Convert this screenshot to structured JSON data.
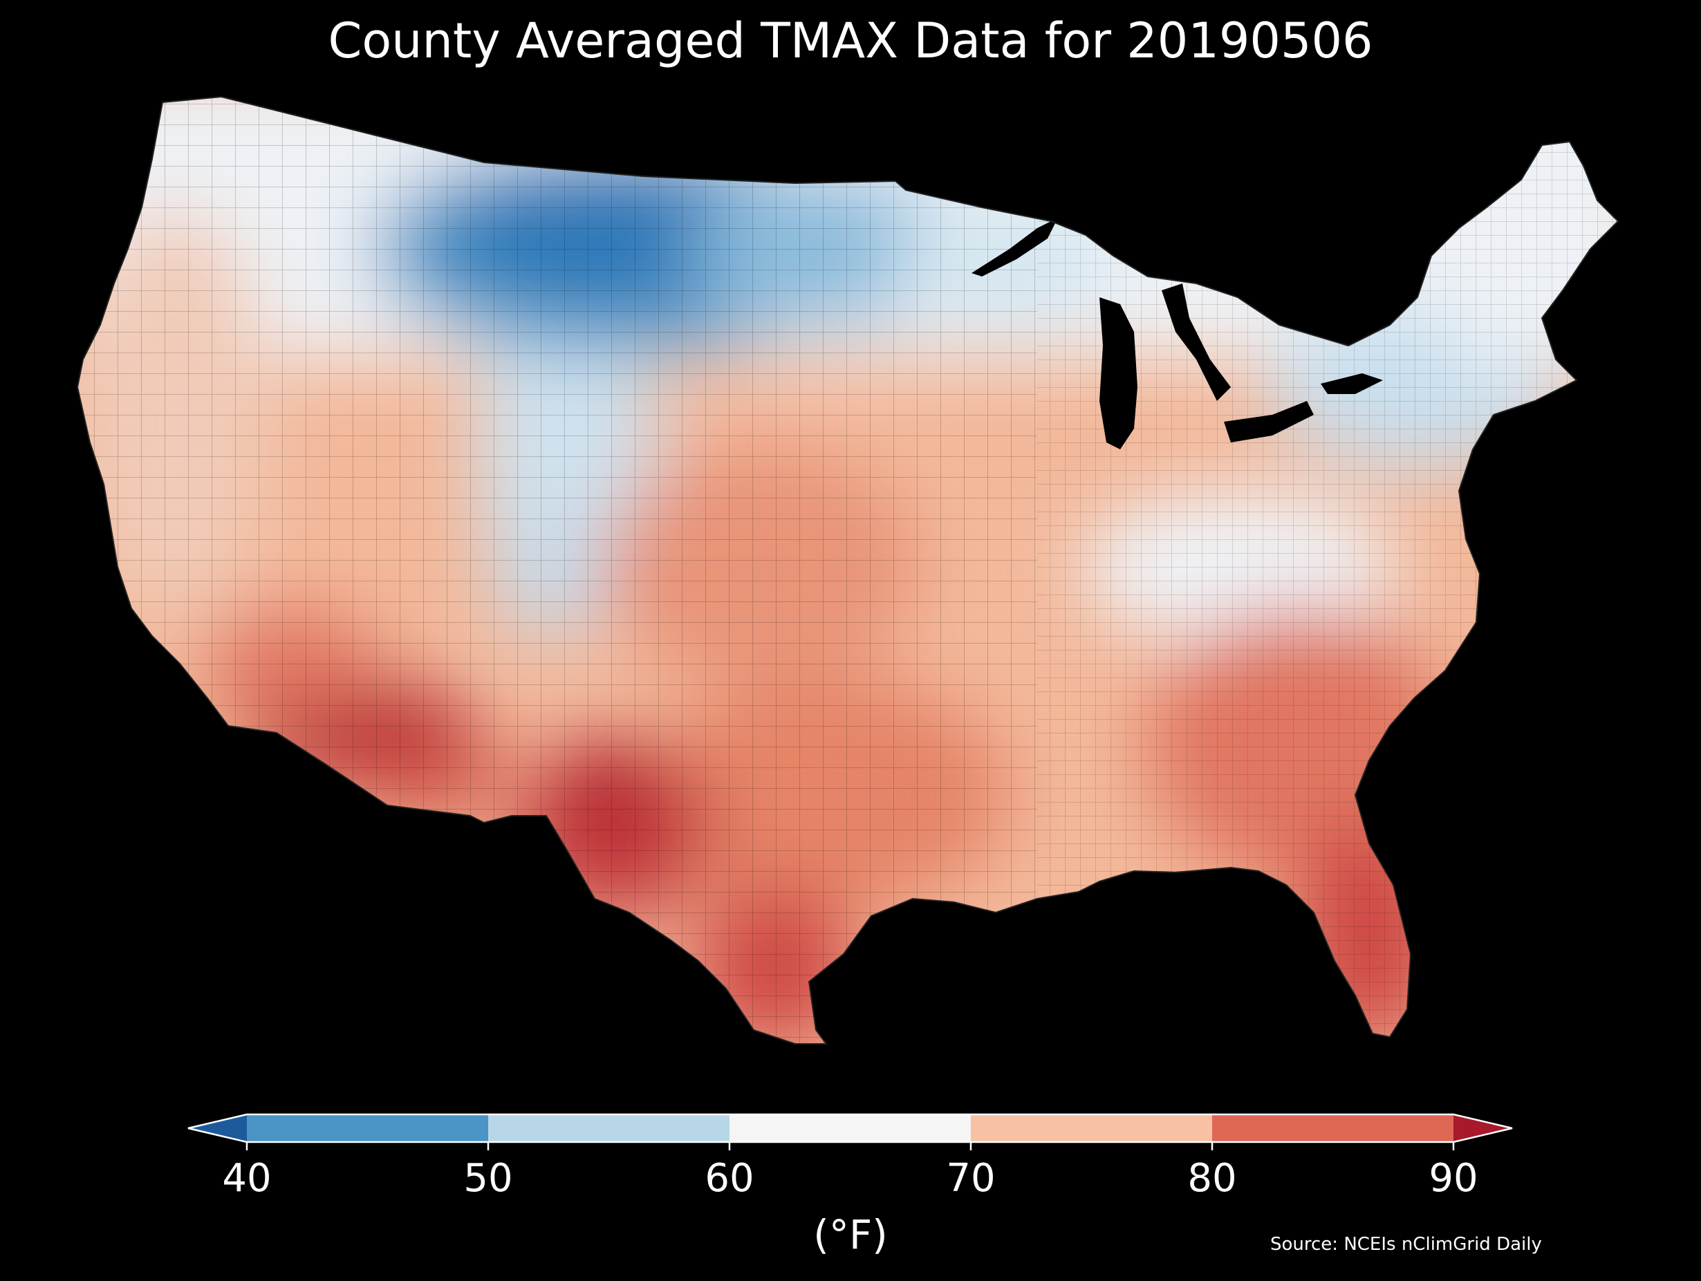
{
  "title": "County Averaged TMAX Data for 20190506",
  "colorbar": {
    "ticks": [
      "40",
      "50",
      "60",
      "70",
      "80",
      "90"
    ],
    "unit": "(°F)",
    "bins": [
      {
        "range": "<40",
        "color": "#1d5a9b"
      },
      {
        "range": "40-50",
        "color": "#4a94c6"
      },
      {
        "range": "50-60",
        "color": "#b7d7e8"
      },
      {
        "range": "60-70",
        "color": "#f5f5f5"
      },
      {
        "range": "70-80",
        "color": "#f7c1a3"
      },
      {
        "range": "80-90",
        "color": "#df6855"
      },
      {
        "range": ">90",
        "color": "#a8192b"
      }
    ]
  },
  "source": "Source: NCEIs nClimGrid Daily",
  "colors": {
    "background": "#000000",
    "cold_core": "#2f78b8",
    "cold": "#4a94c6",
    "cool": "#b7d7e8",
    "neutral": "#f5f5f5",
    "warm": "#f7c1a3",
    "hot": "#df6855",
    "hottest": "#b3202f"
  }
}
